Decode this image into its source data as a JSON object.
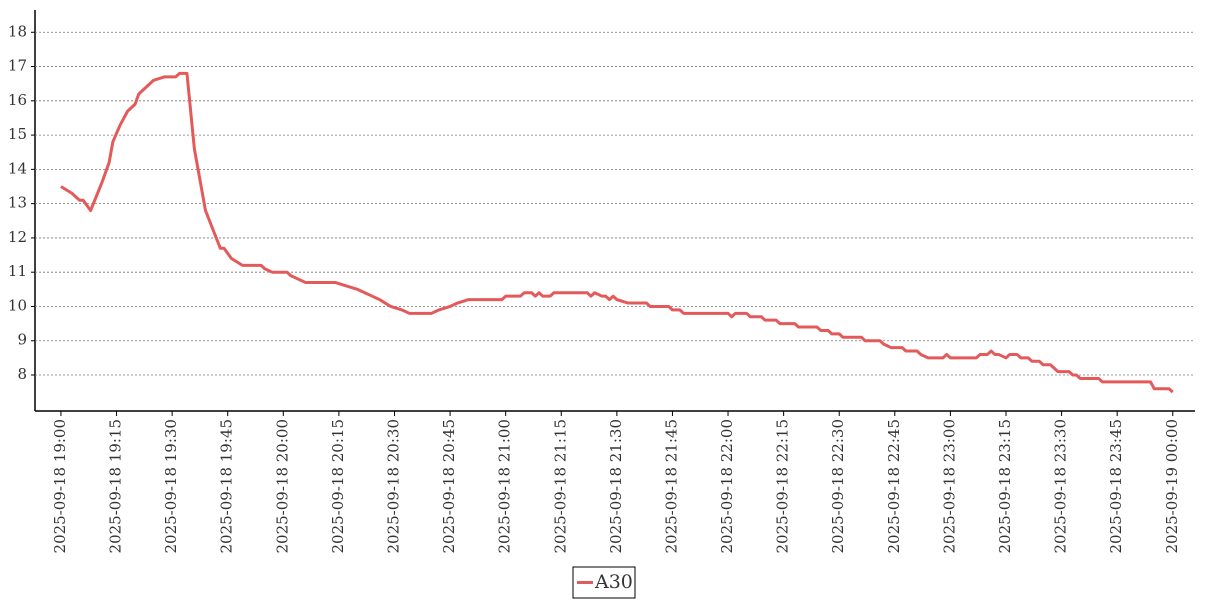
{
  "chart_data": {
    "type": "line",
    "x": [
      "2025-09-18 19:00",
      "2025-09-18 19:03",
      "2025-09-18 19:05",
      "2025-09-18 19:06",
      "2025-09-18 19:08",
      "2025-09-18 19:11",
      "2025-09-18 19:13",
      "2025-09-18 19:14",
      "2025-09-18 19:16",
      "2025-09-18 19:18",
      "2025-09-18 19:20",
      "2025-09-18 19:21",
      "2025-09-18 19:23",
      "2025-09-18 19:25",
      "2025-09-18 19:28",
      "2025-09-18 19:31",
      "2025-09-18 19:32",
      "2025-09-18 19:34",
      "2025-09-18 19:36",
      "2025-09-18 19:39",
      "2025-09-18 19:43",
      "2025-09-18 19:44",
      "2025-09-18 19:46",
      "2025-09-18 19:49",
      "2025-09-18 19:54",
      "2025-09-18 19:55",
      "2025-09-18 19:57",
      "2025-09-18 20:01",
      "2025-09-18 20:02",
      "2025-09-18 20:04",
      "2025-09-18 20:06",
      "2025-09-18 20:14",
      "2025-09-18 20:17",
      "2025-09-18 20:20",
      "2025-09-18 20:22",
      "2025-09-18 20:24",
      "2025-09-18 20:26",
      "2025-09-18 20:29",
      "2025-09-18 20:32",
      "2025-09-18 20:34",
      "2025-09-18 20:40",
      "2025-09-18 20:42",
      "2025-09-18 20:45",
      "2025-09-18 20:47",
      "2025-09-18 20:50",
      "2025-09-18 20:59",
      "2025-09-18 21:00",
      "2025-09-18 21:04",
      "2025-09-18 21:05",
      "2025-09-18 21:07",
      "2025-09-18 21:08",
      "2025-09-18 21:09",
      "2025-09-18 21:10",
      "2025-09-18 21:12",
      "2025-09-18 21:13",
      "2025-09-18 21:22",
      "2025-09-18 21:23",
      "2025-09-18 21:24",
      "2025-09-18 21:26",
      "2025-09-18 21:27",
      "2025-09-18 21:28",
      "2025-09-18 21:29",
      "2025-09-18 21:30",
      "2025-09-18 21:33",
      "2025-09-18 21:38",
      "2025-09-18 21:39",
      "2025-09-18 21:44",
      "2025-09-18 21:45",
      "2025-09-18 21:47",
      "2025-09-18 21:48",
      "2025-09-18 22:00",
      "2025-09-18 22:01",
      "2025-09-18 22:02",
      "2025-09-18 22:05",
      "2025-09-18 22:06",
      "2025-09-18 22:09",
      "2025-09-18 22:10",
      "2025-09-18 22:13",
      "2025-09-18 22:14",
      "2025-09-18 22:18",
      "2025-09-18 22:19",
      "2025-09-18 22:24",
      "2025-09-18 22:25",
      "2025-09-18 22:27",
      "2025-09-18 22:28",
      "2025-09-18 22:30",
      "2025-09-18 22:31",
      "2025-09-18 22:36",
      "2025-09-18 22:37",
      "2025-09-18 22:41",
      "2025-09-18 22:42",
      "2025-09-18 22:44",
      "2025-09-18 22:47",
      "2025-09-18 22:48",
      "2025-09-18 22:51",
      "2025-09-18 22:52",
      "2025-09-18 22:54",
      "2025-09-18 22:58",
      "2025-09-18 22:59",
      "2025-09-18 23:00",
      "2025-09-18 23:07",
      "2025-09-18 23:08",
      "2025-09-18 23:10",
      "2025-09-18 23:11",
      "2025-09-18 23:12",
      "2025-09-18 23:13",
      "2025-09-18 23:15",
      "2025-09-18 23:16",
      "2025-09-18 23:18",
      "2025-09-18 23:19",
      "2025-09-18 23:21",
      "2025-09-18 23:22",
      "2025-09-18 23:24",
      "2025-09-18 23:25",
      "2025-09-18 23:27",
      "2025-09-18 23:28",
      "2025-09-18 23:29",
      "2025-09-18 23:32",
      "2025-09-18 23:33",
      "2025-09-18 23:34",
      "2025-09-18 23:35",
      "2025-09-18 23:40",
      "2025-09-18 23:41",
      "2025-09-18 23:54",
      "2025-09-18 23:55",
      "2025-09-18 23:59",
      "2025-09-19 00:00"
    ],
    "series": [
      {
        "name": "A30",
        "color": "#e45a5a",
        "values": [
          13.5,
          13.3,
          13.1,
          13.1,
          12.8,
          13.6,
          14.2,
          14.8,
          15.3,
          15.7,
          15.9,
          16.2,
          16.4,
          16.6,
          16.7,
          16.7,
          16.8,
          16.8,
          14.6,
          12.8,
          11.7,
          11.7,
          11.4,
          11.2,
          11.2,
          11.1,
          11.0,
          11.0,
          10.9,
          10.8,
          10.7,
          10.7,
          10.6,
          10.5,
          10.4,
          10.3,
          10.2,
          10.0,
          9.9,
          9.8,
          9.8,
          9.9,
          10.0,
          10.1,
          10.2,
          10.2,
          10.3,
          10.3,
          10.4,
          10.4,
          10.3,
          10.4,
          10.3,
          10.3,
          10.4,
          10.4,
          10.3,
          10.4,
          10.3,
          10.3,
          10.2,
          10.3,
          10.2,
          10.1,
          10.1,
          10.0,
          10.0,
          9.9,
          9.9,
          9.8,
          9.8,
          9.7,
          9.8,
          9.8,
          9.7,
          9.7,
          9.6,
          9.6,
          9.5,
          9.5,
          9.4,
          9.4,
          9.3,
          9.3,
          9.2,
          9.2,
          9.1,
          9.1,
          9.0,
          9.0,
          8.9,
          8.8,
          8.8,
          8.7,
          8.7,
          8.6,
          8.5,
          8.5,
          8.6,
          8.5,
          8.5,
          8.6,
          8.6,
          8.7,
          8.6,
          8.6,
          8.5,
          8.6,
          8.6,
          8.5,
          8.5,
          8.4,
          8.4,
          8.3,
          8.3,
          8.2,
          8.1,
          8.1,
          8.0,
          8.0,
          7.9,
          7.9,
          7.8,
          7.8,
          7.6,
          7.6,
          7.5
        ]
      }
    ],
    "xlim": [
      "2025-09-18 18:53",
      "2025-09-19 00:06"
    ],
    "xticks": [
      "2025-09-18 19:00",
      "2025-09-18 19:15",
      "2025-09-18 19:30",
      "2025-09-18 19:45",
      "2025-09-18 20:00",
      "2025-09-18 20:15",
      "2025-09-18 20:30",
      "2025-09-18 20:45",
      "2025-09-18 21:00",
      "2025-09-18 21:15",
      "2025-09-18 21:30",
      "2025-09-18 21:45",
      "2025-09-18 22:00",
      "2025-09-18 22:15",
      "2025-09-18 22:30",
      "2025-09-18 22:45",
      "2025-09-18 23:00",
      "2025-09-18 23:15",
      "2025-09-18 23:30",
      "2025-09-18 23:45",
      "2025-09-19 00:00"
    ],
    "ylim": [
      6.95,
      18.65
    ],
    "yticks": [
      8,
      9,
      10,
      11,
      12,
      13,
      14,
      15,
      16,
      17,
      18
    ],
    "grid": true,
    "legend": "bottom"
  }
}
